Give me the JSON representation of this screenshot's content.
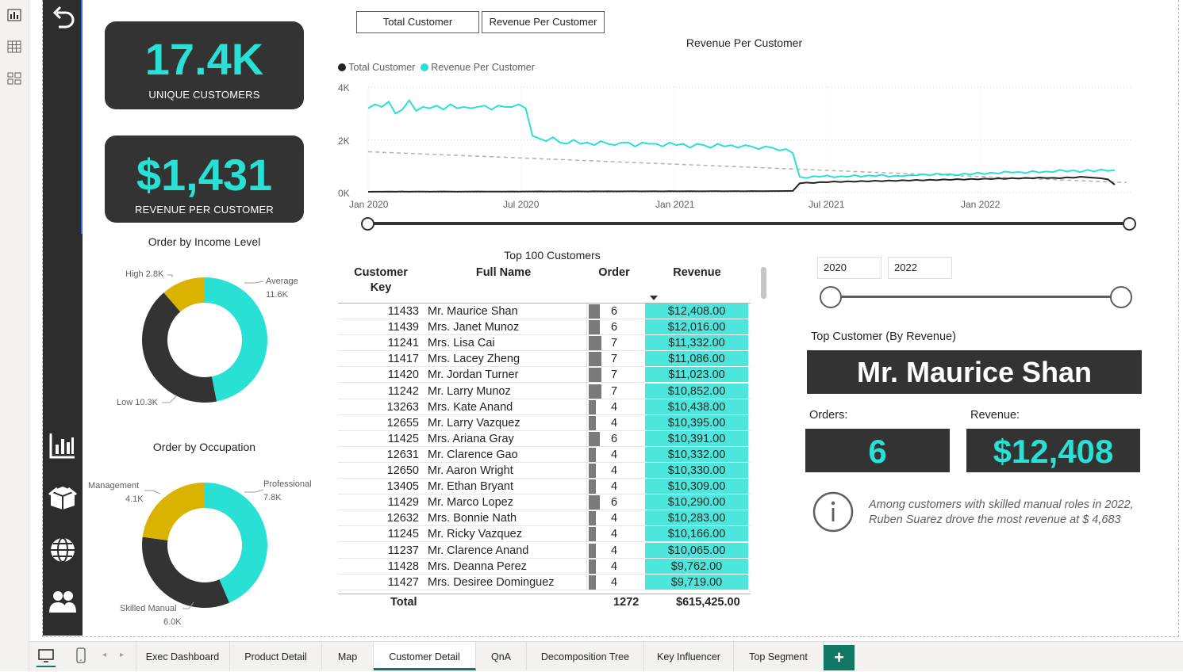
{
  "viewbar": {
    "icons": [
      "report-view-icon",
      "table-view-icon",
      "model-view-icon"
    ]
  },
  "nav": {
    "icons": [
      "back-arrow-icon",
      "bar-chart-icon",
      "box-icon",
      "globe-icon",
      "people-icon"
    ]
  },
  "kpi": {
    "unique_customers": {
      "value": "17.4K",
      "label": "UNIQUE CUSTOMERS"
    },
    "revenue_per_customer": {
      "value": "$1,431",
      "label": "REVENUE PER CUSTOMER"
    }
  },
  "income_donut": {
    "title": "Order by Income Level",
    "labels": {
      "high": "High 2.8K",
      "average": "Average",
      "average_val": "11.6K",
      "low": "Low 10.3K"
    }
  },
  "occupation_donut": {
    "title": "Order by Occupation",
    "labels": {
      "management": "Management",
      "management_val": "4.1K",
      "professional": "Professional",
      "professional_val": "7.8K",
      "skilled": "Skilled Manual",
      "skilled_val": "6.0K"
    }
  },
  "toggle_buttons": {
    "total_customer": "Total Customer",
    "revenue_per_customer": "Revenue Per Customer"
  },
  "line_chart": {
    "title": "Revenue Per Customer",
    "legend": [
      "Total Customer",
      "Revenue Per Customer"
    ],
    "y_ticks": [
      "4K",
      "2K",
      "0K"
    ],
    "x_ticks": [
      "Jan 2020",
      "Jul 2020",
      "Jan 2021",
      "Jul 2021",
      "Jan 2022"
    ]
  },
  "chart_data": {
    "type": "line",
    "title": "Revenue Per Customer",
    "ylim": [
      0,
      4000
    ],
    "x_ticks": [
      "Jan 2020",
      "Jul 2020",
      "Jan 2021",
      "Jul 2021",
      "Jan 2022"
    ],
    "legend_position": "top-left",
    "grid": true,
    "series": [
      {
        "name": "Revenue Per Customer",
        "color": "#29e0d4",
        "values": [
          3200,
          3350,
          3250,
          3450,
          3000,
          3150,
          3500,
          3100,
          3250,
          3200,
          3300,
          3150,
          3350,
          3200,
          3250,
          3200,
          3250,
          3300,
          3150,
          3300,
          3250,
          3250,
          3350,
          3200,
          2150,
          2050,
          1950,
          2100,
          1900,
          1850,
          2000,
          1850,
          1900,
          1800,
          1950,
          1850,
          1800,
          1900,
          1900,
          1750,
          1900,
          1850,
          1850,
          1750,
          1900,
          1800,
          1850,
          1700,
          1850,
          1800,
          1700,
          1850,
          1750,
          1800,
          1700,
          1800,
          1750,
          1650,
          1750,
          1700,
          1600,
          1650,
          1500,
          600,
          550,
          620,
          600,
          650,
          580,
          620,
          600,
          660,
          600,
          650,
          620,
          680,
          600,
          640,
          620,
          660,
          650,
          700,
          650,
          720,
          680,
          700,
          650,
          720,
          680,
          760,
          700,
          760,
          720,
          800,
          760,
          780,
          740,
          820,
          760,
          800,
          780,
          860,
          800,
          840,
          780,
          860,
          800,
          880,
          820,
          850
        ]
      },
      {
        "name": "Total Customer",
        "color": "#252423",
        "values": [
          30,
          35,
          32,
          38,
          35,
          40,
          33,
          36,
          38,
          34,
          36,
          40,
          37,
          35,
          38,
          36,
          40,
          38,
          36,
          39,
          37,
          41,
          38,
          40,
          42,
          44,
          40,
          43,
          45,
          42,
          46,
          44,
          43,
          47,
          45,
          48,
          44,
          46,
          49,
          47,
          45,
          50,
          48,
          46,
          51,
          49,
          47,
          52,
          50,
          48,
          53,
          51,
          49,
          54,
          52,
          50,
          55,
          53,
          51,
          56,
          58,
          60,
          62,
          350,
          380,
          360,
          400,
          390,
          420,
          400,
          430,
          410,
          440,
          420,
          450,
          430,
          460,
          440,
          470,
          450,
          480,
          460,
          490,
          470,
          500,
          480,
          510,
          490,
          520,
          500,
          530,
          510,
          540,
          520,
          550,
          530,
          560,
          540,
          570,
          550,
          560,
          540,
          580,
          560,
          600,
          580,
          560,
          540,
          500,
          300
        ]
      }
    ]
  },
  "table": {
    "title": "Top 100 Customers",
    "headers": {
      "key_line1": "Customer",
      "key_line2": "Key",
      "name": "Full Name",
      "order": "Order",
      "revenue": "Revenue"
    },
    "rows": [
      {
        "key": "11433",
        "name": "Mr. Maurice Shan",
        "order": 6,
        "revenue": "$12,408.00"
      },
      {
        "key": "11439",
        "name": "Mrs. Janet Munoz",
        "order": 6,
        "revenue": "$12,016.00"
      },
      {
        "key": "11241",
        "name": "Mrs. Lisa Cai",
        "order": 7,
        "revenue": "$11,332.00"
      },
      {
        "key": "11417",
        "name": "Mrs. Lacey Zheng",
        "order": 7,
        "revenue": "$11,086.00"
      },
      {
        "key": "11420",
        "name": "Mr. Jordan Turner",
        "order": 7,
        "revenue": "$11,023.00"
      },
      {
        "key": "11242",
        "name": "Mr. Larry Munoz",
        "order": 7,
        "revenue": "$10,852.00"
      },
      {
        "key": "13263",
        "name": "Mrs. Kate Anand",
        "order": 4,
        "revenue": "$10,438.00"
      },
      {
        "key": "12655",
        "name": "Mr. Larry Vazquez",
        "order": 4,
        "revenue": "$10,395.00"
      },
      {
        "key": "11425",
        "name": "Mrs. Ariana Gray",
        "order": 6,
        "revenue": "$10,391.00"
      },
      {
        "key": "12631",
        "name": "Mr. Clarence Gao",
        "order": 4,
        "revenue": "$10,332.00"
      },
      {
        "key": "12650",
        "name": "Mr. Aaron Wright",
        "order": 4,
        "revenue": "$10,330.00"
      },
      {
        "key": "13405",
        "name": "Mr. Ethan Bryant",
        "order": 4,
        "revenue": "$10,309.00"
      },
      {
        "key": "11429",
        "name": "Mr. Marco Lopez",
        "order": 6,
        "revenue": "$10,290.00"
      },
      {
        "key": "12632",
        "name": "Mrs. Bonnie Nath",
        "order": 4,
        "revenue": "$10,283.00"
      },
      {
        "key": "11245",
        "name": "Mr. Ricky Vazquez",
        "order": 4,
        "revenue": "$10,166.00"
      },
      {
        "key": "11237",
        "name": "Mr. Clarence Anand",
        "order": 4,
        "revenue": "$10,065.00"
      },
      {
        "key": "11428",
        "name": "Mrs. Deanna Perez",
        "order": 4,
        "revenue": "$9,762.00"
      },
      {
        "key": "11427",
        "name": "Mrs. Desiree Dominguez",
        "order": 4,
        "revenue": "$9,719.00"
      }
    ],
    "total": {
      "label": "Total",
      "order": "1272",
      "revenue": "$615,425.00"
    }
  },
  "date_slicer": {
    "start": "2020",
    "end": "2022"
  },
  "top_customer": {
    "title": "Top Customer (By Revenue)",
    "name": "Mr. Maurice Shan",
    "orders_label": "Orders:",
    "orders": "6",
    "revenue_label": "Revenue:",
    "revenue": "$12,408"
  },
  "insight": {
    "line1": "Among customers with skilled manual roles in 2022,",
    "line2": "Ruben Suarez drove the most revenue at $ 4,683"
  },
  "tabs": {
    "items": [
      "Exec Dashboard",
      "Product Detail",
      "Map",
      "Customer Detail",
      "QnA",
      "Decomposition Tree",
      "Key Influencer",
      "Top Segment"
    ],
    "active": "Customer Detail",
    "add": "+"
  },
  "colors": {
    "accent": "#29e0d4",
    "dark": "#333333",
    "gold": "#d9b300",
    "tab_active": "#117865"
  }
}
